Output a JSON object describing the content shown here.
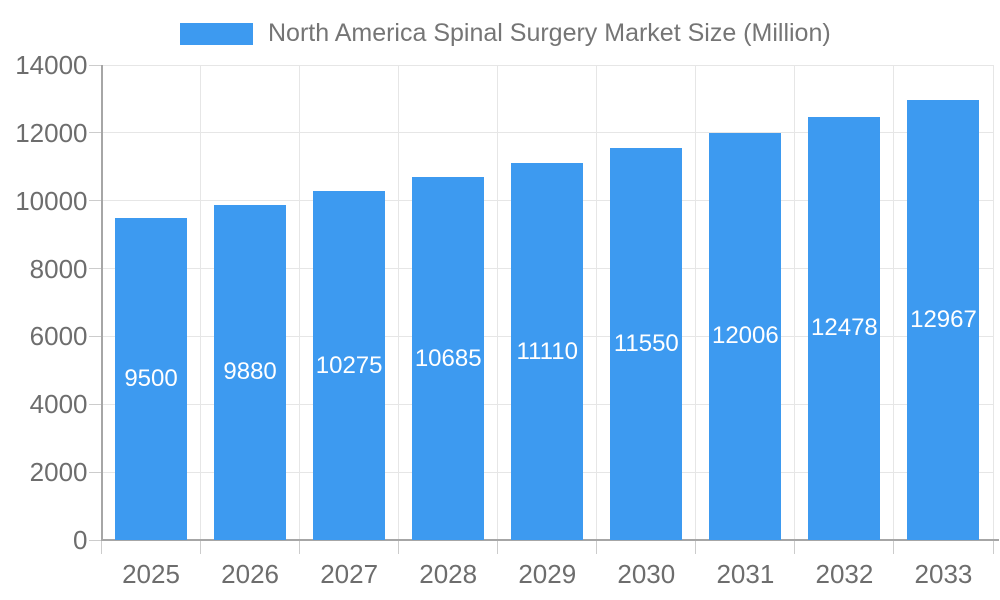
{
  "chart_data": {
    "type": "bar",
    "title": "",
    "legend": {
      "label": "North America Spinal Surgery Market Size (Million)",
      "position": "top"
    },
    "categories": [
      "2025",
      "2026",
      "2027",
      "2028",
      "2029",
      "2030",
      "2031",
      "2032",
      "2033"
    ],
    "series": [
      {
        "name": "North America Spinal Surgery Market Size (Million)",
        "values": [
          9500,
          9880,
          10275,
          10685,
          11110,
          11550,
          12006,
          12478,
          12967
        ]
      }
    ],
    "xlabel": "",
    "ylabel": "",
    "ylim": [
      0,
      14000
    ],
    "yticks": [
      0,
      2000,
      4000,
      6000,
      8000,
      10000,
      12000,
      14000
    ],
    "grid": true,
    "value_labels": "inside-center",
    "colors": {
      "bar": "#3d9af0",
      "grid": "#e6e6e6",
      "axis": "#a6a6a6",
      "tick": "#cccccc",
      "axis_text": "#6d6d6d",
      "legend_text": "#757575",
      "value_text": "#ffffff",
      "background": "#ffffff"
    }
  }
}
